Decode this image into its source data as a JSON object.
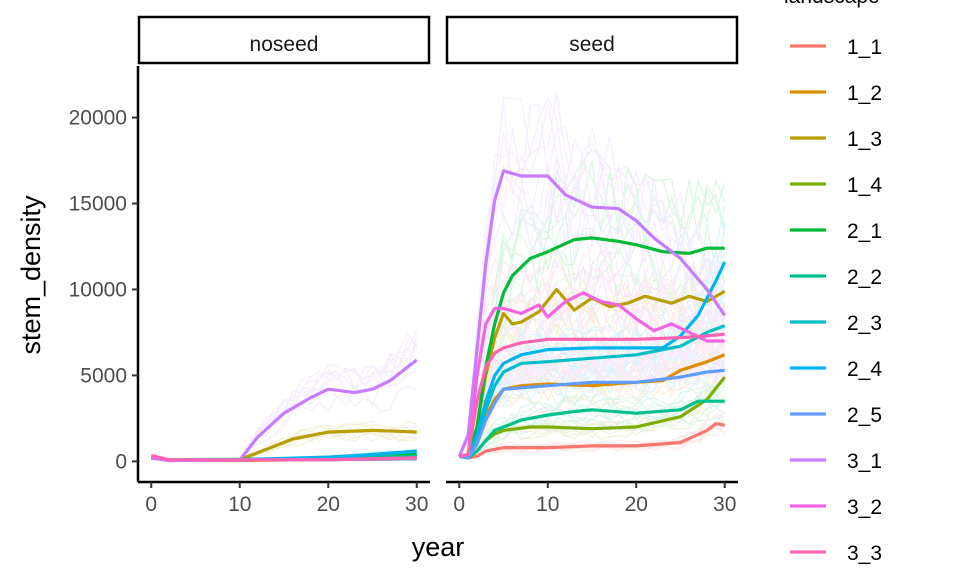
{
  "chart_data": {
    "type": "line",
    "xlabel": "year",
    "ylabel": "stem_density",
    "legend_title": "landscape",
    "legend_position": "right",
    "grid": false,
    "xlim": [
      -1.5,
      31.5
    ],
    "ylim": [
      -1200,
      23000
    ],
    "x_ticks": [
      0,
      10,
      20,
      30
    ],
    "y_ticks": [
      0,
      5000,
      10000,
      15000,
      20000
    ],
    "x_tick_labels": [
      "0",
      "10",
      "20",
      "30"
    ],
    "y_tick_labels": [
      "0",
      "5000",
      "10000",
      "15000",
      "20000"
    ],
    "panels": [
      {
        "label": "noseed",
        "series": [
          {
            "name": "1_1",
            "color": "#F8766D",
            "x": [
              0,
              2,
              10,
              20,
              30
            ],
            "y": [
              300,
              80,
              60,
              100,
              150
            ]
          },
          {
            "name": "1_2",
            "color": "#DE8C00",
            "x": [
              0,
              2,
              10,
              20,
              30
            ],
            "y": [
              250,
              60,
              50,
              120,
              350
            ]
          },
          {
            "name": "1_3",
            "color": "#B79F00",
            "x": [
              0,
              2,
              10,
              12,
              16,
              20,
              25,
              28,
              30
            ],
            "y": [
              250,
              50,
              100,
              500,
              1300,
              1700,
              1800,
              1750,
              1700
            ]
          },
          {
            "name": "1_4",
            "color": "#7CAE00",
            "x": [
              0,
              2,
              10,
              20,
              30
            ],
            "y": [
              200,
              60,
              80,
              100,
              200
            ]
          },
          {
            "name": "2_1",
            "color": "#00BA38",
            "x": [
              0,
              2,
              10,
              20,
              30
            ],
            "y": [
              250,
              100,
              120,
              150,
              400
            ]
          },
          {
            "name": "2_2",
            "color": "#00C08B",
            "x": [
              0,
              2,
              10,
              20,
              30
            ],
            "y": [
              200,
              80,
              100,
              150,
              300
            ]
          },
          {
            "name": "2_3",
            "color": "#00BFC4",
            "x": [
              0,
              2,
              10,
              20,
              30
            ],
            "y": [
              200,
              80,
              100,
              200,
              600
            ]
          },
          {
            "name": "2_4",
            "color": "#00B4F0",
            "x": [
              0,
              2,
              10,
              20,
              25,
              30
            ],
            "y": [
              200,
              80,
              100,
              250,
              400,
              600
            ]
          },
          {
            "name": "2_5",
            "color": "#619CFF",
            "x": [
              0,
              2,
              10,
              20,
              30
            ],
            "y": [
              200,
              60,
              80,
              100,
              150
            ]
          },
          {
            "name": "3_1",
            "color": "#C77CFF",
            "x": [
              0,
              2,
              10,
              12,
              15,
              18,
              20,
              23,
              25,
              27,
              29,
              30
            ],
            "y": [
              200,
              50,
              80,
              1400,
              2800,
              3700,
              4200,
              4000,
              4200,
              4700,
              5500,
              5900
            ]
          },
          {
            "name": "3_2",
            "color": "#F564E3",
            "x": [
              0,
              2,
              10,
              20,
              30
            ],
            "y": [
              300,
              80,
              80,
              100,
              200
            ]
          },
          {
            "name": "3_3",
            "color": "#FF64B0",
            "x": [
              0,
              2,
              10,
              20,
              30
            ],
            "y": [
              350,
              100,
              80,
              100,
              200
            ]
          }
        ]
      },
      {
        "label": "seed",
        "series": [
          {
            "name": "1_1",
            "color": "#F8766D",
            "x": [
              0,
              1,
              2,
              3,
              5,
              10,
              15,
              20,
              25,
              28,
              29,
              30
            ],
            "y": [
              300,
              200,
              300,
              600,
              800,
              800,
              900,
              900,
              1100,
              1800,
              2200,
              2100
            ]
          },
          {
            "name": "1_2",
            "color": "#DE8C00",
            "x": [
              0,
              1,
              2,
              3,
              4,
              5,
              7,
              10,
              15,
              20,
              23,
              25,
              28,
              30
            ],
            "y": [
              300,
              200,
              1200,
              2600,
              3600,
              4200,
              4400,
              4500,
              4400,
              4600,
              4700,
              5300,
              5800,
              6200
            ]
          },
          {
            "name": "1_3",
            "color": "#B79F00",
            "x": [
              0,
              1,
              2,
              3,
              4,
              5,
              6,
              7,
              9,
              11,
              13,
              15,
              17,
              19,
              21,
              24,
              26,
              28,
              30
            ],
            "y": [
              300,
              300,
              2000,
              5000,
              7200,
              8600,
              8000,
              8100,
              8700,
              10000,
              8800,
              9500,
              9000,
              9200,
              9600,
              9200,
              9600,
              9300,
              9900
            ]
          },
          {
            "name": "1_4",
            "color": "#7CAE00",
            "x": [
              0,
              1,
              2,
              3,
              4,
              5,
              8,
              10,
              15,
              20,
              25,
              28,
              30
            ],
            "y": [
              300,
              200,
              600,
              1200,
              1600,
              1800,
              2000,
              2000,
              1900,
              2000,
              2600,
              3600,
              4900
            ]
          },
          {
            "name": "2_1",
            "color": "#00BA38",
            "x": [
              0,
              1,
              2,
              3,
              4,
              5,
              6,
              8,
              10,
              13,
              15,
              18,
              20,
              23,
              26,
              28,
              30
            ],
            "y": [
              300,
              300,
              2000,
              5500,
              8000,
              9800,
              10800,
              11800,
              12200,
              12900,
              13000,
              12800,
              12600,
              12200,
              12100,
              12400,
              12400
            ]
          },
          {
            "name": "2_2",
            "color": "#00C08B",
            "x": [
              0,
              1,
              2,
              3,
              4,
              5,
              7,
              10,
              13,
              15,
              20,
              25,
              27,
              30
            ],
            "y": [
              300,
              200,
              600,
              1200,
              1800,
              2000,
              2400,
              2700,
              2900,
              3000,
              2800,
              3000,
              3500,
              3500
            ]
          },
          {
            "name": "2_3",
            "color": "#00BFC4",
            "x": [
              0,
              1,
              2,
              3,
              4,
              5,
              7,
              10,
              15,
              20,
              25,
              28,
              30
            ],
            "y": [
              300,
              200,
              1200,
              3000,
              4400,
              5200,
              5700,
              5800,
              6000,
              6200,
              6700,
              7500,
              7900
            ]
          },
          {
            "name": "2_4",
            "color": "#00B4F0",
            "x": [
              0,
              1,
              2,
              3,
              4,
              5,
              7,
              10,
              15,
              20,
              23,
              25,
              27,
              29,
              30
            ],
            "y": [
              300,
              200,
              1500,
              3500,
              5000,
              5700,
              6200,
              6500,
              6600,
              6600,
              6600,
              7300,
              8500,
              10500,
              11600
            ]
          },
          {
            "name": "2_5",
            "color": "#619CFF",
            "x": [
              0,
              1,
              2,
              3,
              4,
              5,
              10,
              15,
              20,
              25,
              28,
              30
            ],
            "y": [
              300,
              200,
              1000,
              2400,
              3400,
              4200,
              4400,
              4600,
              4600,
              4900,
              5200,
              5300
            ]
          },
          {
            "name": "3_1",
            "color": "#C77CFF",
            "x": [
              0,
              1,
              2,
              3,
              4,
              5,
              7,
              10,
              12,
              15,
              18,
              20,
              22,
              25,
              28,
              30
            ],
            "y": [
              300,
              1500,
              6500,
              11500,
              15200,
              16900,
              16600,
              16600,
              15500,
              14800,
              14700,
              14000,
              13000,
              11800,
              10000,
              8500
            ]
          },
          {
            "name": "3_2",
            "color": "#F564E3",
            "x": [
              0,
              1,
              2,
              3,
              4,
              5,
              7,
              9,
              10,
              12,
              14,
              16,
              18,
              20,
              22,
              24,
              26,
              28,
              30
            ],
            "y": [
              300,
              400,
              5000,
              8000,
              8900,
              8900,
              8600,
              9100,
              8400,
              9300,
              9800,
              9300,
              9100,
              8300,
              7600,
              8000,
              7500,
              7000,
              7000
            ]
          },
          {
            "name": "3_3",
            "color": "#FF64B0",
            "x": [
              0,
              1,
              2,
              3,
              4,
              5,
              7,
              10,
              15,
              20,
              25,
              28,
              30
            ],
            "y": [
              300,
              400,
              3500,
              5500,
              6300,
              6600,
              6900,
              7100,
              7100,
              7100,
              7200,
              7300,
              7400
            ]
          }
        ]
      }
    ]
  }
}
